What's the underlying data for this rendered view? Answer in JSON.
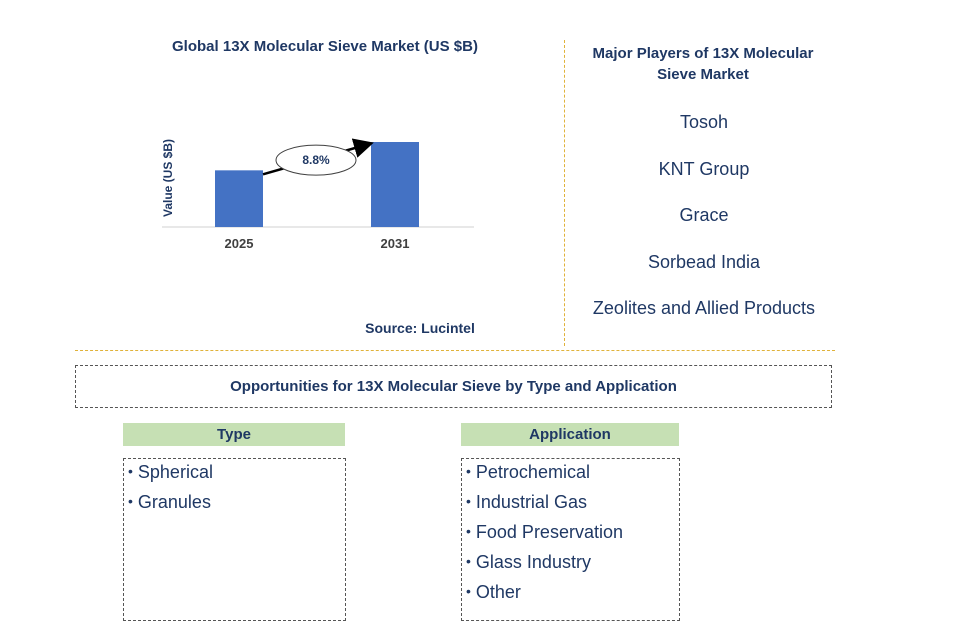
{
  "chart_title": "Global 13X Molecular Sieve Market (US $B)",
  "chart_data": {
    "type": "bar",
    "categories": [
      "2025",
      "2031"
    ],
    "values": [
      1.0,
      1.5
    ],
    "ylabel": "Value (US $B)",
    "annotation": "8.8%",
    "bar_color": "#4472c4"
  },
  "source": "Source: Lucintel",
  "players": {
    "title": "Major Players of 13X Molecular Sieve Market",
    "items": [
      "Tosoh",
      "KNT Group",
      "Grace",
      "Sorbead India",
      "Zeolites and Allied Products"
    ]
  },
  "opportunities": {
    "title": "Opportunities for 13X Molecular Sieve by Type and Application",
    "type": {
      "label": "Type",
      "items": [
        "Spherical",
        "Granules"
      ]
    },
    "application": {
      "label": "Application",
      "items": [
        "Petrochemical",
        "Industrial Gas",
        "Food Preservation",
        "Glass Industry",
        "Other"
      ]
    }
  }
}
